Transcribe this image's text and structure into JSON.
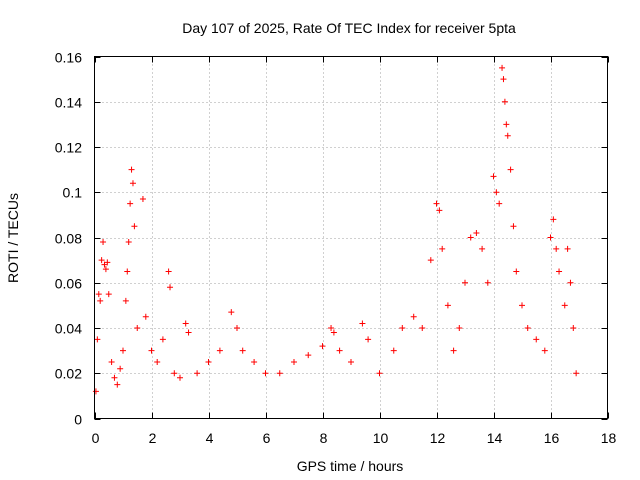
{
  "chart_data": {
    "type": "scatter",
    "title": "Day 107 of 2025, Rate Of TEC Index for receiver 5pta",
    "xlabel": "GPS time / hours",
    "ylabel": "ROTI / TECUs",
    "xlim": [
      0,
      18
    ],
    "ylim": [
      0,
      0.16
    ],
    "xticks": [
      "0",
      "2",
      "4",
      "6",
      "8",
      "10",
      "12",
      "14",
      "16",
      "18"
    ],
    "yticks": [
      "0",
      "0.02",
      "0.04",
      "0.06",
      "0.08",
      "0.1",
      "0.12",
      "0.14",
      "0.16"
    ],
    "grid": true,
    "marker": "+",
    "colors": {
      "series": "#ff0000",
      "grid": "#a0a0a0",
      "axes": "#000000"
    },
    "series": [
      {
        "points": [
          [
            0.05,
            0.012
          ],
          [
            0.1,
            0.035
          ],
          [
            0.15,
            0.055
          ],
          [
            0.2,
            0.052
          ],
          [
            0.25,
            0.07
          ],
          [
            0.3,
            0.078
          ],
          [
            0.35,
            0.068
          ],
          [
            0.4,
            0.066
          ],
          [
            0.45,
            0.069
          ],
          [
            0.5,
            0.055
          ],
          [
            0.6,
            0.025
          ],
          [
            0.7,
            0.018
          ],
          [
            0.8,
            0.015
          ],
          [
            0.9,
            0.022
          ],
          [
            1.0,
            0.03
          ],
          [
            1.1,
            0.052
          ],
          [
            1.15,
            0.065
          ],
          [
            1.2,
            0.078
          ],
          [
            1.25,
            0.095
          ],
          [
            1.3,
            0.11
          ],
          [
            1.35,
            0.104
          ],
          [
            1.4,
            0.085
          ],
          [
            1.5,
            0.04
          ],
          [
            1.7,
            0.097
          ],
          [
            1.8,
            0.045
          ],
          [
            2.0,
            0.03
          ],
          [
            2.2,
            0.025
          ],
          [
            2.4,
            0.035
          ],
          [
            2.6,
            0.065
          ],
          [
            2.65,
            0.058
          ],
          [
            2.8,
            0.02
          ],
          [
            3.0,
            0.018
          ],
          [
            3.2,
            0.042
          ],
          [
            3.3,
            0.038
          ],
          [
            3.6,
            0.02
          ],
          [
            4.0,
            0.025
          ],
          [
            4.4,
            0.03
          ],
          [
            4.8,
            0.047
          ],
          [
            5.0,
            0.04
          ],
          [
            5.2,
            0.03
          ],
          [
            5.6,
            0.025
          ],
          [
            6.0,
            0.02
          ],
          [
            6.5,
            0.02
          ],
          [
            7.0,
            0.025
          ],
          [
            7.5,
            0.028
          ],
          [
            8.0,
            0.032
          ],
          [
            8.3,
            0.04
          ],
          [
            8.4,
            0.038
          ],
          [
            8.6,
            0.03
          ],
          [
            9.0,
            0.025
          ],
          [
            9.4,
            0.042
          ],
          [
            9.6,
            0.035
          ],
          [
            10.0,
            0.02
          ],
          [
            10.5,
            0.03
          ],
          [
            10.8,
            0.04
          ],
          [
            11.2,
            0.045
          ],
          [
            11.5,
            0.04
          ],
          [
            11.8,
            0.07
          ],
          [
            12.0,
            0.095
          ],
          [
            12.1,
            0.092
          ],
          [
            12.2,
            0.075
          ],
          [
            12.4,
            0.05
          ],
          [
            12.6,
            0.03
          ],
          [
            12.8,
            0.04
          ],
          [
            13.0,
            0.06
          ],
          [
            13.2,
            0.08
          ],
          [
            13.4,
            0.082
          ],
          [
            13.6,
            0.075
          ],
          [
            13.8,
            0.06
          ],
          [
            14.0,
            0.107
          ],
          [
            14.1,
            0.1
          ],
          [
            14.2,
            0.095
          ],
          [
            14.3,
            0.155
          ],
          [
            14.35,
            0.15
          ],
          [
            14.4,
            0.14
          ],
          [
            14.45,
            0.13
          ],
          [
            14.5,
            0.125
          ],
          [
            14.6,
            0.11
          ],
          [
            14.7,
            0.085
          ],
          [
            14.8,
            0.065
          ],
          [
            15.0,
            0.05
          ],
          [
            15.2,
            0.04
          ],
          [
            15.5,
            0.035
          ],
          [
            15.8,
            0.03
          ],
          [
            16.0,
            0.08
          ],
          [
            16.1,
            0.088
          ],
          [
            16.2,
            0.075
          ],
          [
            16.3,
            0.065
          ],
          [
            16.5,
            0.05
          ],
          [
            16.6,
            0.075
          ],
          [
            16.7,
            0.06
          ],
          [
            16.8,
            0.04
          ],
          [
            16.9,
            0.02
          ]
        ]
      }
    ]
  }
}
